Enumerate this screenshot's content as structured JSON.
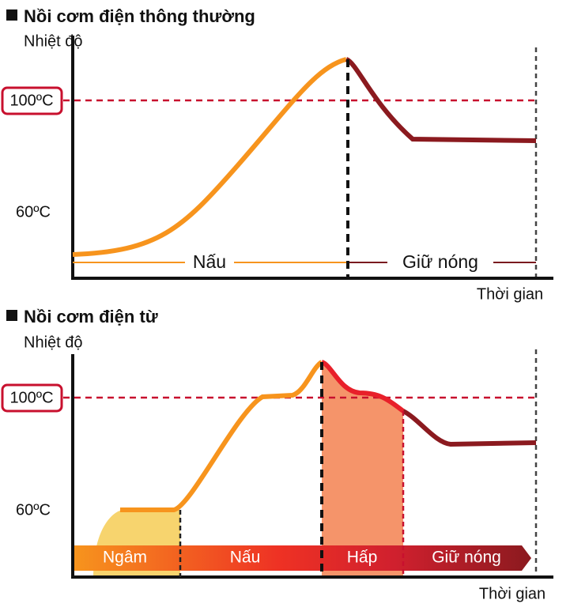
{
  "panels": [
    {
      "title": "Nồi cơm điện thông thường",
      "y_label": "Nhiệt độ",
      "ticks": [
        "100ºC",
        "60ºC"
      ],
      "phases": [
        "Nấu",
        "Giữ nóng"
      ],
      "x_label": "Thời gian"
    },
    {
      "title": "Nồi cơm điện từ",
      "y_label": "Nhiệt độ",
      "ticks": [
        "100ºC",
        "60ºC"
      ],
      "phases": [
        "Ngâm",
        "Nấu",
        "Hấp",
        "Giữ nóng"
      ],
      "x_label": "Thời gian"
    }
  ]
}
